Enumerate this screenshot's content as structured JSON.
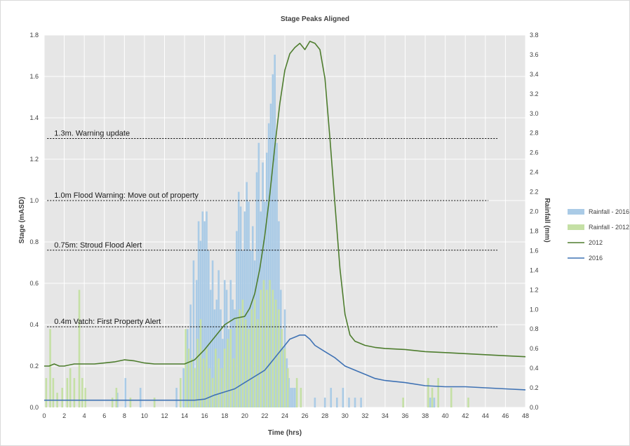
{
  "chart_data": {
    "type": "line",
    "title": "Stage Peaks Aligned",
    "xlabel": "Time (hrs)",
    "ylabel": "Stage (mASD)",
    "y2label": "Rainfall (mm)",
    "xlim": [
      0,
      48
    ],
    "ylim": [
      0,
      1.8
    ],
    "y2lim": [
      0,
      3.8
    ],
    "x_ticks": [
      0,
      2,
      4,
      6,
      8,
      10,
      12,
      14,
      16,
      18,
      20,
      22,
      24,
      26,
      28,
      30,
      32,
      34,
      36,
      38,
      40,
      42,
      44,
      46,
      48
    ],
    "y_ticks": [
      0.0,
      0.2,
      0.4,
      0.6,
      0.8,
      1.0,
      1.2,
      1.4,
      1.6,
      1.8
    ],
    "y2_ticks": [
      0.0,
      0.2,
      0.4,
      0.6,
      0.8,
      1.0,
      1.2,
      1.4,
      1.6,
      1.8,
      2.0,
      2.2,
      2.4,
      2.6,
      2.8,
      3.0,
      3.2,
      3.4,
      3.6,
      3.8
    ],
    "x_tick_labels": [
      "0",
      "2",
      "4",
      "6",
      "8",
      "10",
      "12",
      "14",
      "16",
      "18",
      "20",
      "22",
      "24",
      "26",
      "28",
      "30",
      "32",
      "34",
      "36",
      "38",
      "40",
      "42",
      "44",
      "46",
      "48"
    ],
    "y_tick_labels": [
      "0.0",
      "0.2",
      "0.4",
      "0.6",
      "0.8",
      "1.0",
      "1.2",
      "1.4",
      "1.6",
      "1.8"
    ],
    "y2_tick_labels": [
      "0.0",
      "0.2",
      "0.4",
      "0.6",
      "0.8",
      "1.0",
      "1.2",
      "1.4",
      "1.6",
      "1.8",
      "2.0",
      "2.2",
      "2.4",
      "2.6",
      "2.8",
      "3.0",
      "3.2",
      "3.4",
      "3.6",
      "3.8"
    ],
    "grid": true,
    "legend_position": "right",
    "legend": [
      "Rainfall - 2016",
      "Rainfall - 2012",
      "2012",
      "2016"
    ],
    "colors": {
      "plot_bg": "#e6e6e6",
      "grid": "#ffffff",
      "rain_2016": "#aacbe6",
      "rain_2012": "#c5e0a5",
      "line_2012": "#4e7d2e",
      "line_2016": "#3f72b4",
      "threshold": "#000000"
    },
    "thresholds": [
      {
        "y": 1.3,
        "label": "1.3m. Warning update",
        "x_start": 0.3,
        "x_end": 45.2
      },
      {
        "y": 1.0,
        "label": "1.0m Flood Warning: Move out of property",
        "x_start": 0.3,
        "x_end": 44.3
      },
      {
        "y": 0.76,
        "label": "0.75m: Stroud Flood Alert",
        "x_start": 0.3,
        "x_end": 45.2
      },
      {
        "y": 0.39,
        "label": "0.4m Vatch: First Property Alert",
        "x_start": 0.3,
        "x_end": 45.2
      }
    ],
    "series": [
      {
        "name": "2012",
        "type": "line",
        "axis": "left",
        "x": [
          0,
          0.5,
          1,
          1.5,
          2,
          3,
          3.5,
          4,
          5,
          6,
          7,
          8,
          9,
          10,
          11,
          12,
          13,
          14,
          15,
          16,
          17,
          18,
          19,
          20,
          20.5,
          21,
          21.5,
          22,
          22.5,
          23,
          23.5,
          24,
          24.5,
          25,
          25.5,
          26,
          26.5,
          27,
          27.5,
          28,
          28.5,
          29,
          29.5,
          30,
          30.5,
          31,
          32,
          33,
          34,
          36,
          38,
          40,
          42,
          44,
          46,
          48
        ],
        "y": [
          0.2,
          0.2,
          0.21,
          0.2,
          0.2,
          0.21,
          0.21,
          0.21,
          0.21,
          0.215,
          0.22,
          0.23,
          0.225,
          0.215,
          0.21,
          0.21,
          0.21,
          0.21,
          0.23,
          0.28,
          0.34,
          0.4,
          0.43,
          0.44,
          0.48,
          0.55,
          0.67,
          0.83,
          1.03,
          1.26,
          1.47,
          1.63,
          1.71,
          1.74,
          1.76,
          1.73,
          1.77,
          1.76,
          1.73,
          1.59,
          1.3,
          0.98,
          0.67,
          0.45,
          0.35,
          0.32,
          0.3,
          0.29,
          0.285,
          0.28,
          0.27,
          0.265,
          0.26,
          0.255,
          0.25,
          0.245
        ]
      },
      {
        "name": "2016",
        "type": "line",
        "axis": "left",
        "x": [
          0,
          2,
          4,
          6,
          8,
          10,
          12,
          14,
          15,
          16,
          17,
          18,
          19,
          20,
          21,
          22,
          23,
          24,
          24.5,
          25,
          25.5,
          26,
          26.5,
          27,
          28,
          29,
          30,
          31,
          32,
          33,
          34,
          36,
          38,
          40,
          42,
          44,
          46,
          48
        ],
        "y": [
          0.035,
          0.035,
          0.035,
          0.035,
          0.035,
          0.035,
          0.035,
          0.035,
          0.035,
          0.04,
          0.06,
          0.075,
          0.09,
          0.12,
          0.15,
          0.18,
          0.24,
          0.3,
          0.33,
          0.34,
          0.35,
          0.35,
          0.33,
          0.3,
          0.27,
          0.24,
          0.2,
          0.18,
          0.16,
          0.14,
          0.13,
          0.12,
          0.105,
          0.1,
          0.1,
          0.095,
          0.09,
          0.085
        ]
      },
      {
        "name": "Rainfall - 2016",
        "type": "bar",
        "axis": "right",
        "x": [
          7.3,
          8.1,
          9.6,
          11.0,
          13.2,
          13.9,
          14.3,
          14.6,
          14.9,
          15.2,
          15.4,
          15.6,
          15.8,
          16.0,
          16.2,
          16.4,
          16.6,
          16.8,
          17.0,
          17.2,
          17.4,
          17.6,
          17.8,
          18.0,
          18.2,
          18.4,
          18.6,
          18.8,
          19.0,
          19.2,
          19.4,
          19.6,
          19.8,
          20.0,
          20.2,
          20.4,
          20.6,
          20.8,
          21.0,
          21.2,
          21.4,
          21.6,
          21.8,
          22.0,
          22.2,
          22.4,
          22.6,
          22.8,
          23.0,
          23.2,
          23.4,
          23.6,
          23.8,
          24.0,
          24.2,
          24.4,
          24.6,
          24.8,
          25.0,
          27.0,
          28.0,
          28.6,
          29.2,
          29.8,
          30.4,
          31.0,
          31.6,
          38.5,
          38.9
        ],
        "y": [
          0.15,
          0.3,
          0.2,
          0.1,
          0.2,
          0.4,
          0.8,
          1.05,
          1.5,
          1.3,
          1.9,
          1.7,
          2.0,
          1.9,
          2.0,
          1.6,
          1.2,
          1.5,
          1.0,
          1.1,
          1.4,
          1.0,
          0.7,
          1.3,
          1.2,
          0.8,
          1.3,
          1.1,
          1.0,
          1.8,
          2.2,
          2.05,
          1.6,
          2.0,
          2.3,
          2.1,
          1.6,
          1.85,
          1.5,
          2.4,
          2.7,
          2.0,
          2.5,
          2.1,
          2.6,
          2.9,
          3.1,
          3.4,
          3.6,
          2.7,
          1.9,
          1.2,
          0.6,
          1.0,
          0.5,
          0.3,
          0.2,
          0.2,
          0.2,
          0.1,
          0.1,
          0.2,
          0.1,
          0.2,
          0.1,
          0.1,
          0.1,
          0.1,
          0.1
        ]
      },
      {
        "name": "Rainfall - 2012",
        "type": "bar",
        "axis": "right",
        "x": [
          0.2,
          0.6,
          0.9,
          1.3,
          1.8,
          2.3,
          2.6,
          3.0,
          3.5,
          3.8,
          4.1,
          6.8,
          7.2,
          8.6,
          11.0,
          13.6,
          14.1,
          14.4,
          14.7,
          15.0,
          15.3,
          15.6,
          15.9,
          16.2,
          16.5,
          16.8,
          17.1,
          17.4,
          17.7,
          18.0,
          18.3,
          18.6,
          18.9,
          19.2,
          19.5,
          19.8,
          20.1,
          20.4,
          20.7,
          21.0,
          21.3,
          21.6,
          21.9,
          22.2,
          22.5,
          22.8,
          23.1,
          23.4,
          23.7,
          24.0,
          24.3,
          25.2,
          25.6,
          35.8,
          38.3,
          38.7,
          39.3,
          40.6,
          42.3
        ],
        "y": [
          0.3,
          0.8,
          0.3,
          0.15,
          0.2,
          0.3,
          0.4,
          0.3,
          1.2,
          0.3,
          0.2,
          0.1,
          0.2,
          0.1,
          0.1,
          0.3,
          0.8,
          0.6,
          0.5,
          0.4,
          0.7,
          0.9,
          0.5,
          0.6,
          0.4,
          0.3,
          0.6,
          0.5,
          0.4,
          0.6,
          0.7,
          0.8,
          0.5,
          0.9,
          1.0,
          1.1,
          0.9,
          0.8,
          1.0,
          1.1,
          0.9,
          1.2,
          1.3,
          1.2,
          1.3,
          1.2,
          1.1,
          1.0,
          0.8,
          0.6,
          0.4,
          0.3,
          0.2,
          0.1,
          0.3,
          0.2,
          0.3,
          0.2,
          0.1
        ]
      }
    ]
  }
}
